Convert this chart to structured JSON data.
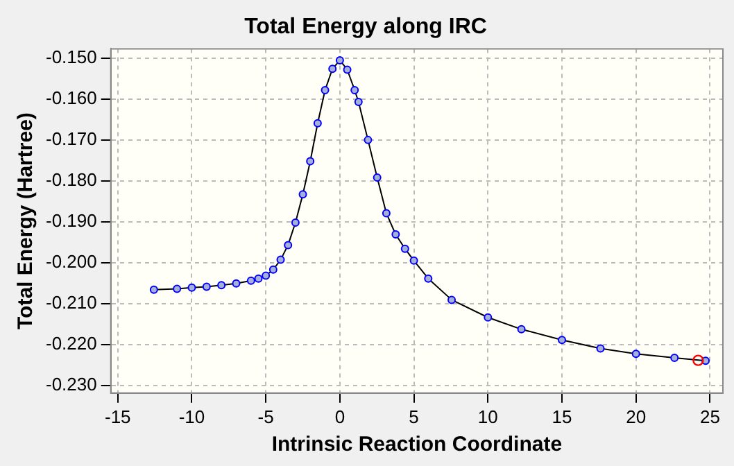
{
  "chart_data": {
    "type": "line",
    "title": "Total Energy along IRC",
    "xlabel": "Intrinsic Reaction Coordinate",
    "ylabel": "Total Energy (Hartree)",
    "xlim": [
      -15.47,
      25.87
    ],
    "xticks": [
      -15,
      -10,
      -5,
      0,
      5,
      10,
      15,
      20,
      25
    ],
    "ylim": [
      -0.2319,
      -0.1477
    ],
    "yticks": [
      {
        "value": -0.23,
        "label": "-0.230"
      },
      {
        "value": -0.22,
        "label": "-0.220"
      },
      {
        "value": -0.21,
        "label": "-0.210"
      },
      {
        "value": -0.2,
        "label": "-0.200"
      },
      {
        "value": -0.19,
        "label": "-0.190"
      },
      {
        "value": -0.18,
        "label": "-0.180"
      },
      {
        "value": -0.17,
        "label": "-0.170"
      },
      {
        "value": -0.16,
        "label": "-0.160"
      },
      {
        "value": -0.15,
        "label": "-0.150"
      }
    ],
    "grid": true,
    "marker": "circle",
    "line_style": "solid",
    "series": [
      {
        "color": "#0000ff",
        "x": [
          -12.56,
          -11,
          -10,
          -9,
          -8,
          -7,
          -6,
          -5.5,
          -5,
          -4.5,
          -4,
          -3.5,
          -3,
          -2.5,
          -2,
          -1.5,
          -1,
          -0.5,
          0,
          0.5,
          1,
          1.26,
          1.9,
          2.52,
          3.14,
          3.77,
          4.4,
          5,
          5.97,
          7.55,
          10,
          12.26,
          15,
          17.6,
          20,
          22.6,
          24.7
        ],
        "values": [
          -0.2066,
          -0.2064,
          -0.2061,
          -0.2059,
          -0.2055,
          -0.2051,
          -0.2044,
          -0.2039,
          -0.2032,
          -0.2017,
          -0.1993,
          -0.1957,
          -0.1902,
          -0.1833,
          -0.1752,
          -0.1659,
          -0.1578,
          -0.1526,
          -0.1505,
          -0.1528,
          -0.1578,
          -0.1607,
          -0.17,
          -0.1792,
          -0.1879,
          -0.1931,
          -0.1966,
          -0.1995,
          -0.2039,
          -0.2091,
          -0.2134,
          -0.2163,
          -0.2189,
          -0.221,
          -0.2223,
          -0.2233,
          -0.224
        ]
      },
      {
        "type": "scatter",
        "color": "#ff0000",
        "x": [
          24.2
        ],
        "values": [
          -0.2239
        ]
      }
    ]
  }
}
